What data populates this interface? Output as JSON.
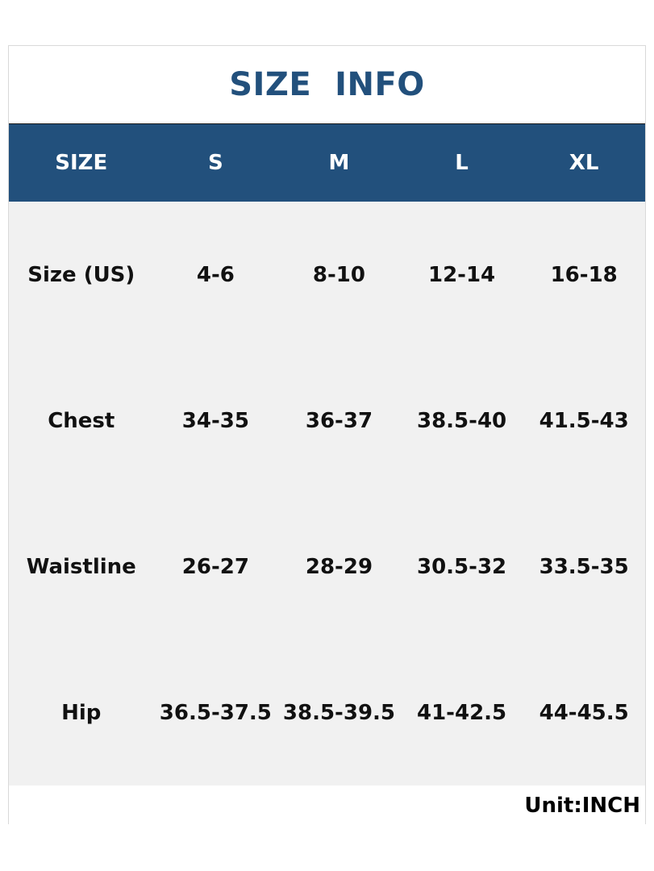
{
  "title": "SIZE  INFO",
  "header": {
    "label": "SIZE",
    "sizes": [
      "S",
      "M",
      "L",
      "XL"
    ]
  },
  "rows": [
    {
      "label": "Size (US)",
      "values": [
        "4-6",
        "8-10",
        "12-14",
        "16-18"
      ]
    },
    {
      "label": "Chest",
      "values": [
        "34-35",
        "36-37",
        "38.5-40",
        "41.5-43"
      ]
    },
    {
      "label": "Waistline",
      "values": [
        "26-27",
        "28-29",
        "30.5-32",
        "33.5-35"
      ]
    },
    {
      "label": "Hip",
      "values": [
        "36.5-37.5",
        "38.5-39.5",
        "41-42.5",
        "44-45.5"
      ]
    }
  ],
  "unit": "Unit:INCH",
  "colors": {
    "header_bg": "#22507c",
    "title": "#22507c",
    "body_bg": "#f1f1f1"
  }
}
